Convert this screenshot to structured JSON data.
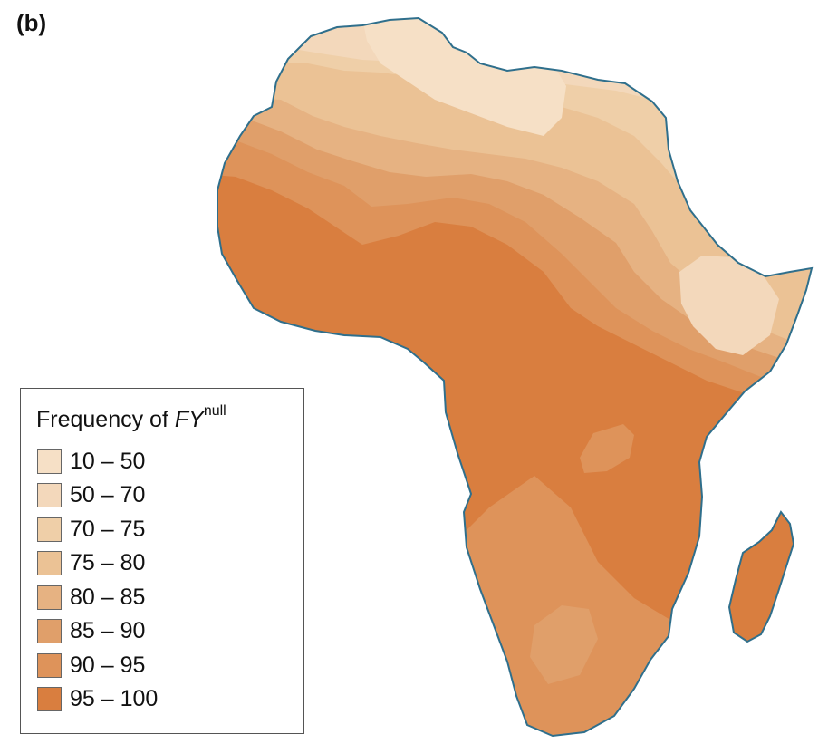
{
  "panel_label": "(b)",
  "legend": {
    "title_prefix": "Frequency of ",
    "title_gene": "FY",
    "title_superscript": "null",
    "items": [
      {
        "label": "10 – 50",
        "color": "#f6e0c6"
      },
      {
        "label": "50 – 70",
        "color": "#f3d8bb"
      },
      {
        "label": "70 – 75",
        "color": "#efcfa8"
      },
      {
        "label": "75 – 80",
        "color": "#ebc295"
      },
      {
        "label": "80 – 85",
        "color": "#e6b282"
      },
      {
        "label": "85 – 90",
        "color": "#e09f6a"
      },
      {
        "label": "90 – 95",
        "color": "#de935a"
      },
      {
        "label": "95 – 100",
        "color": "#d97e3f"
      }
    ]
  },
  "map": {
    "outline_color": "#2f6f8c",
    "regions": [
      "africa-continent",
      "madagascar"
    ]
  }
}
